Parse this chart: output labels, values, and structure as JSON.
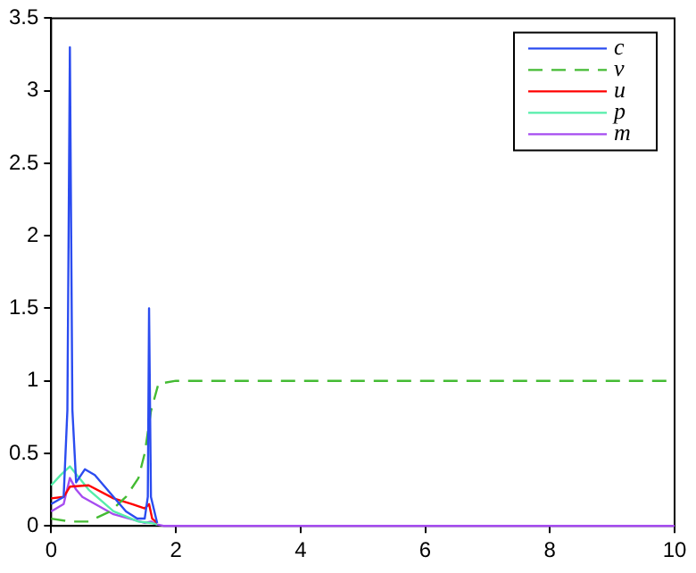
{
  "chart_data": {
    "type": "line",
    "xlim": [
      0,
      10
    ],
    "ylim": [
      0,
      3.5
    ],
    "xticks": [
      0,
      2,
      4,
      6,
      8,
      10
    ],
    "yticks": [
      0,
      0.5,
      1,
      1.5,
      2,
      2.5,
      3,
      3.5
    ],
    "grid": false,
    "legend": "top right",
    "marker": "none",
    "series": [
      {
        "name": "c",
        "color": "#2b4cf0",
        "x": [
          0,
          0.2,
          0.26,
          0.3,
          0.34,
          0.4,
          0.54,
          0.7,
          1.0,
          1.2,
          1.38,
          1.5,
          1.55,
          1.57,
          1.6,
          1.7
        ],
        "values": [
          0.15,
          0.2,
          0.8,
          3.3,
          0.8,
          0.3,
          0.39,
          0.35,
          0.2,
          0.1,
          0.05,
          0.05,
          0.2,
          1.5,
          0.2,
          0.02
        ]
      },
      {
        "name": "v",
        "color": "#44bb33",
        "line_style": "dashed",
        "x": [
          0,
          0.3,
          0.6,
          0.95,
          1.2,
          1.4,
          1.5,
          1.6,
          1.72,
          2,
          10
        ],
        "values": [
          0.05,
          0.03,
          0.03,
          0.1,
          0.2,
          0.33,
          0.5,
          0.79,
          0.98,
          1,
          1
        ]
      },
      {
        "name": "u",
        "color": "#ff0000",
        "x": [
          0,
          0.2,
          0.3,
          0.6,
          1.0,
          1.3,
          1.5,
          1.57,
          1.62,
          1.7
        ],
        "values": [
          0.19,
          0.2,
          0.27,
          0.28,
          0.19,
          0.15,
          0.12,
          0.15,
          0.05,
          0.02
        ]
      },
      {
        "name": "p",
        "color": "#55eeaa",
        "x": [
          0,
          0.15,
          0.3,
          0.45,
          0.6,
          1.0,
          1.4,
          1.6,
          1.7
        ],
        "values": [
          0.28,
          0.35,
          0.41,
          0.33,
          0.25,
          0.1,
          0.03,
          0.02,
          0.01
        ]
      },
      {
        "name": "m",
        "color": "#a64cf0",
        "x": [
          0,
          0.2,
          0.3,
          0.4,
          0.5,
          1.0,
          1.5,
          1.6,
          1.7,
          1.8,
          10
        ],
        "values": [
          0.1,
          0.15,
          0.33,
          0.25,
          0.2,
          0.08,
          0.02,
          0.03,
          0.01,
          0,
          0
        ]
      }
    ]
  }
}
